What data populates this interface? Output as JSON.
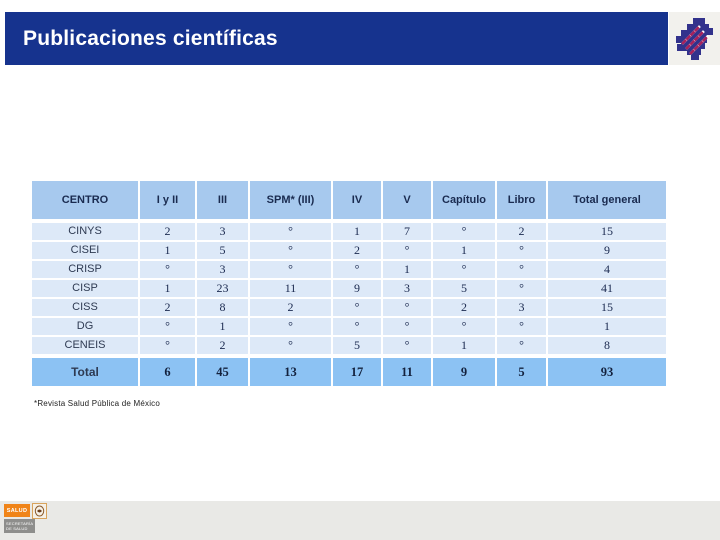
{
  "header": {
    "title": "Publicaciones científicas"
  },
  "table": {
    "columns": [
      "CENTRO",
      "I y II",
      "III",
      "SPM* (III)",
      "IV",
      "V",
      "Capítulo",
      "Libro",
      "Total general"
    ],
    "rows": [
      [
        "CINYS",
        "2",
        "3",
        "°",
        "1",
        "7",
        "°",
        "2",
        "15"
      ],
      [
        "CISEI",
        "1",
        "5",
        "°",
        "2",
        "°",
        "1",
        "°",
        "9"
      ],
      [
        "CRISP",
        "°",
        "3",
        "°",
        "°",
        "1",
        "°",
        "°",
        "4"
      ],
      [
        "CISP",
        "1",
        "23",
        "11",
        "9",
        "3",
        "5",
        "°",
        "41"
      ],
      [
        "CISS",
        "2",
        "8",
        "2",
        "°",
        "°",
        "2",
        "3",
        "15"
      ],
      [
        "DG",
        "°",
        "1",
        "°",
        "°",
        "°",
        "°",
        "°",
        "1"
      ],
      [
        "CENEIS",
        "°",
        "2",
        "°",
        "5",
        "°",
        "1",
        "°",
        "8"
      ]
    ],
    "total_row": [
      "Total",
      "6",
      "45",
      "13",
      "17",
      "11",
      "9",
      "5",
      "93"
    ]
  },
  "footnote": "*Revista Salud Pública de México",
  "footer_logo": {
    "salud": "SALUD",
    "secretaria_line1": "SECRETARÍA",
    "secretaria_line2": "DE SALUD"
  },
  "colors": {
    "title_bar": "#16338E",
    "header_row_bg": "#A7C9EE",
    "data_row_bg": "#DDE9F8",
    "total_row_bg": "#8CC2F3",
    "header_text": "#1A2B50",
    "salud_orange": "#F08418",
    "logo_navy": "#32328C",
    "logo_crimson": "#A6215C"
  }
}
